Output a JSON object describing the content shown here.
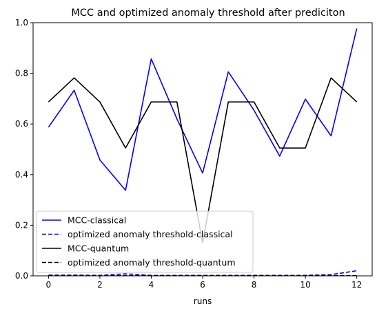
{
  "chart_data": {
    "type": "line",
    "title": "MCC and optimized anomaly threshold after prediciton",
    "xlabel": "runs",
    "ylabel": "",
    "xlim": [
      -0.6,
      12.6
    ],
    "ylim": [
      0.0,
      1.0
    ],
    "xticks": [
      0,
      2,
      4,
      6,
      8,
      10,
      12
    ],
    "xtick_labels": [
      "0",
      "2",
      "4",
      "6",
      "8",
      "10",
      "12"
    ],
    "yticks": [
      0.0,
      0.2,
      0.4,
      0.6,
      0.8,
      1.0
    ],
    "ytick_labels": [
      "0.0",
      "0.2",
      "0.4",
      "0.6",
      "0.8",
      "1.0"
    ],
    "grid": false,
    "legend_position": "lower-left",
    "x": [
      0,
      1,
      2,
      3,
      4,
      5,
      6,
      7,
      8,
      9,
      10,
      11,
      12
    ],
    "series": [
      {
        "name": "MCC-classical",
        "color": "#0000ff",
        "style": "solid",
        "values": [
          0.587,
          0.733,
          0.458,
          0.338,
          0.857,
          0.62,
          0.406,
          0.806,
          0.654,
          0.473,
          0.698,
          0.553,
          0.977
        ]
      },
      {
        "name": "optimized anomaly threshold-classical",
        "color": "#0000ff",
        "style": "dashed",
        "values": [
          0.003,
          0.003,
          0.002,
          0.008,
          0.002,
          0.002,
          0.002,
          0.002,
          0.002,
          0.002,
          0.002,
          0.005,
          0.02
        ]
      },
      {
        "name": "MCC-quantum",
        "color": "#000000",
        "style": "solid",
        "values": [
          0.687,
          0.782,
          0.687,
          0.505,
          0.687,
          0.687,
          0.131,
          0.687,
          0.687,
          0.505,
          0.505,
          0.782,
          0.687
        ]
      },
      {
        "name": "optimized anomaly threshold-quantum",
        "color": "#000000",
        "style": "dashed",
        "values": [
          0.001,
          0.001,
          0.001,
          0.001,
          0.001,
          0.001,
          0.001,
          0.001,
          0.001,
          0.001,
          0.001,
          0.001,
          0.001
        ]
      }
    ]
  }
}
